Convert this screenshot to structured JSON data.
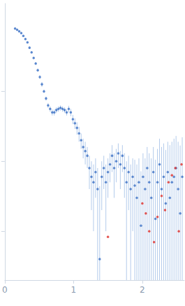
{
  "chart_data": {
    "type": "scatter",
    "log": "y",
    "tick_labels": "x",
    "grid": false,
    "xlim": [
      0,
      2.61
    ],
    "xticks": [
      0,
      1,
      2
    ],
    "ylim": [
      0.0002,
      1.8
    ],
    "yticks": [
      0.001,
      0.01,
      0.1
    ],
    "series": [
      {
        "color": "#3a6fc4",
        "marker": "circle",
        "x": [
          0.15,
          0.18,
          0.21,
          0.24,
          0.27,
          0.3,
          0.33,
          0.36,
          0.39,
          0.42,
          0.45,
          0.48,
          0.51,
          0.54,
          0.57,
          0.6,
          0.63,
          0.66,
          0.69,
          0.72,
          0.75,
          0.78,
          0.81,
          0.84,
          0.87,
          0.9,
          0.93,
          0.96,
          0.99,
          1.02,
          1.05,
          1.08,
          1.11,
          1.14,
          1.17,
          1.2,
          1.23,
          1.26,
          1.29,
          1.32,
          1.35,
          1.38,
          1.41,
          1.44,
          1.47,
          1.5,
          1.53,
          1.56,
          1.59,
          1.62,
          1.65,
          1.68,
          1.71,
          1.74,
          1.77,
          1.8,
          1.83,
          1.86,
          1.89,
          1.92,
          1.95,
          1.98,
          2.01,
          2.04,
          2.07,
          2.1,
          2.13,
          2.16,
          2.19,
          2.22,
          2.25,
          2.28,
          2.31,
          2.34,
          2.37,
          2.4,
          2.43,
          2.46,
          2.49,
          2.52,
          2.55,
          2.58
        ],
        "values": [
          0.79,
          0.76,
          0.72,
          0.68,
          0.62,
          0.56,
          0.5,
          0.42,
          0.36,
          0.3,
          0.25,
          0.2,
          0.16,
          0.126,
          0.1,
          0.079,
          0.063,
          0.056,
          0.05,
          0.05,
          0.054,
          0.056,
          0.058,
          0.056,
          0.054,
          0.05,
          0.056,
          0.05,
          0.04,
          0.035,
          0.03,
          0.025,
          0.02,
          0.016,
          0.014,
          0.012,
          0.008,
          0.006,
          0.005,
          0.007,
          0.004,
          0.0004,
          0.006,
          0.008,
          0.005,
          0.007,
          0.009,
          0.012,
          0.008,
          0.01,
          0.013,
          0.009,
          0.012,
          0.008,
          0.005,
          0.007,
          0.004,
          0.006,
          0.0045,
          0.003,
          0.005,
          0.0012,
          0.006,
          0.004,
          0.008,
          0.005,
          0.003,
          0.007,
          0.0015,
          0.005,
          0.009,
          0.004,
          0.006,
          0.0025,
          0.007,
          0.003,
          0.005,
          0.006,
          0.008,
          0.004,
          0.0018,
          0.006
        ],
        "errors": [
          0.01,
          0.01,
          0.01,
          0.01,
          0.01,
          0.01,
          0.01,
          0.01,
          0.01,
          0.01,
          0.01,
          0.01,
          0.01,
          0.01,
          0.005,
          0.005,
          0.005,
          0.005,
          0.005,
          0.005,
          0.005,
          0.005,
          0.005,
          0.005,
          0.005,
          0.005,
          0.006,
          0.006,
          0.006,
          0.006,
          0.006,
          0.006,
          0.005,
          0.005,
          0.005,
          0.004,
          0.004,
          0.004,
          0.004,
          0.004,
          0.004,
          0.004,
          0.004,
          0.004,
          0.004,
          0.004,
          0.004,
          0.005,
          0.005,
          0.005,
          0.005,
          0.005,
          0.005,
          0.005,
          0.005,
          0.005,
          0.005,
          0.005,
          0.006,
          0.006,
          0.006,
          0.006,
          0.007,
          0.007,
          0.008,
          0.008,
          0.008,
          0.009,
          0.009,
          0.01,
          0.012,
          0.012,
          0.012,
          0.012,
          0.012,
          0.014,
          0.014,
          0.015,
          0.015,
          0.015,
          0.015,
          0.016
        ]
      },
      {
        "color": "#e0302a",
        "marker": "circle",
        "x": [
          1.5,
          2.0,
          2.05,
          2.1,
          2.17,
          2.22,
          2.28,
          2.33,
          2.38,
          2.43,
          2.48,
          2.53,
          2.57
        ],
        "values": [
          0.00083,
          0.0025,
          0.0018,
          0.001,
          0.0007,
          0.0016,
          0.0032,
          0.002,
          0.005,
          0.0063,
          0.008,
          0.001,
          0.009
        ]
      }
    ]
  }
}
